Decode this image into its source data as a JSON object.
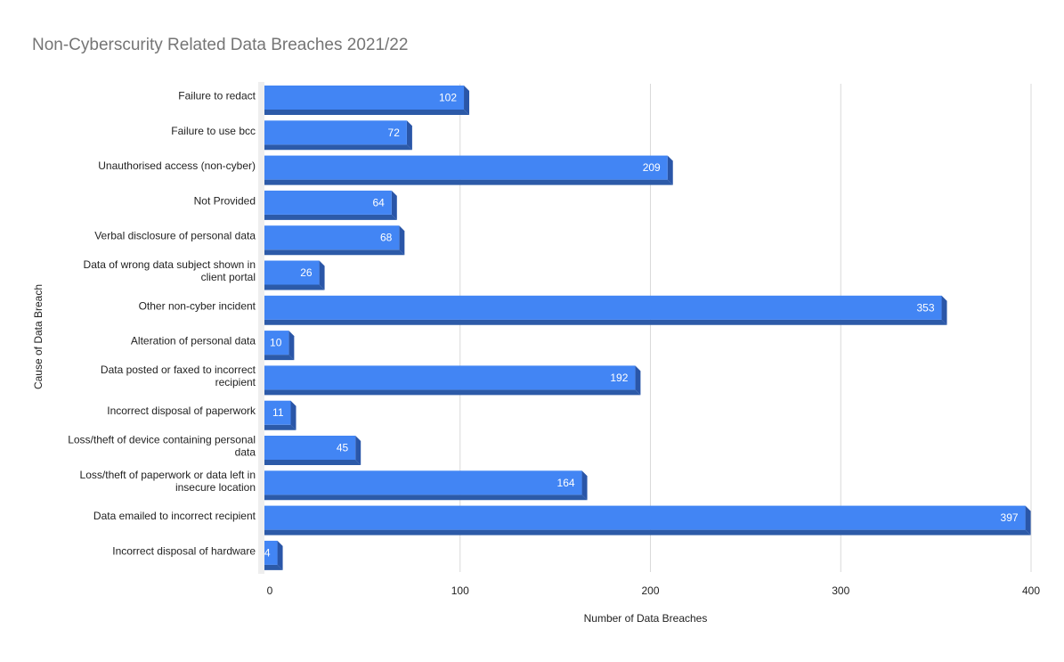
{
  "chart_data": {
    "type": "bar",
    "orientation": "horizontal",
    "title": "Non-Cyberscurity Related Data Breaches 2021/22",
    "xlabel": "Number of Data Breaches",
    "ylabel": "Cause of Data Breach",
    "xlim": [
      0,
      400
    ],
    "x_ticks": [
      0,
      100,
      200,
      300,
      400
    ],
    "grid": "vertical",
    "legend": "none",
    "categories": [
      [
        "Failure to redact"
      ],
      [
        "Failure to use bcc"
      ],
      [
        "Unauthorised access (non-cyber)"
      ],
      [
        "Not Provided"
      ],
      [
        "Verbal disclosure of personal data"
      ],
      [
        "Data of wrong data subject shown in",
        "client portal"
      ],
      [
        "Other non-cyber incident"
      ],
      [
        "Alteration of personal data"
      ],
      [
        "Data posted or faxed to incorrect",
        "recipient"
      ],
      [
        "Incorrect disposal of paperwork"
      ],
      [
        "Loss/theft of device containing personal",
        "data"
      ],
      [
        "Loss/theft of paperwork or data left in",
        "insecure location"
      ],
      [
        "Data emailed to incorrect recipient"
      ],
      [
        "Incorrect disposal of hardware"
      ]
    ],
    "values": [
      102,
      72,
      209,
      64,
      68,
      26,
      353,
      10,
      192,
      11,
      45,
      164,
      397,
      4
    ],
    "colors": {
      "bar": "#4285f4",
      "bar_side": "#2a56a8",
      "bar_bottom": "#2c5aa8",
      "label_inside": "#ffffff",
      "label_outside": "#4285f4",
      "grid": "#d9d9d9",
      "title": "#757575",
      "axis_text": "#222222"
    }
  }
}
